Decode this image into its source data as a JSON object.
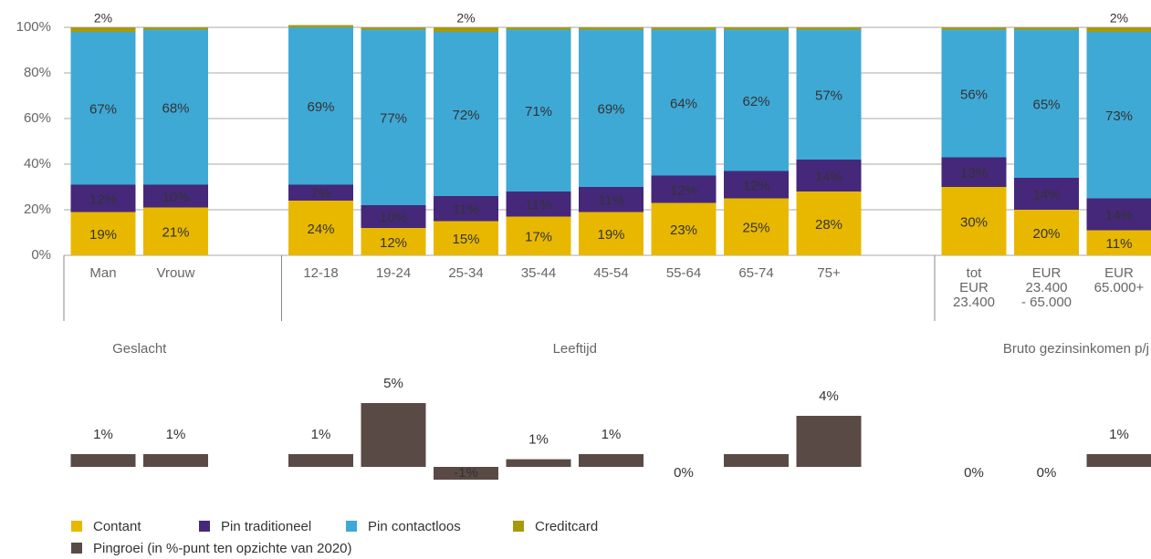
{
  "chart_data": [
    {
      "type": "stacked_bar",
      "categories": [
        "Man",
        "Vrouw",
        null,
        "12-18",
        "19-24",
        "25-34",
        "35-44",
        "45-54",
        "55-64",
        "65-74",
        "75+",
        null,
        "tot\nEUR\n23.400",
        "EUR\n23.400\n- 65.000",
        "EUR\n65.000+"
      ],
      "groups": [
        "Geslacht",
        "Leeftijd",
        "Bruto gezinsinkomen p/j"
      ],
      "series": [
        {
          "name": "Contant",
          "color": "#e8b800",
          "values": [
            19,
            21,
            null,
            24,
            12,
            15,
            17,
            19,
            23,
            25,
            28,
            null,
            30,
            20,
            11
          ],
          "value_labels": [
            "19%",
            "21%",
            null,
            "24%",
            "12%",
            "15%",
            "17%",
            "19%",
            "23%",
            "25%",
            "28%",
            null,
            "30%",
            "20%",
            "11%"
          ]
        },
        {
          "name": "Pin traditioneel",
          "color": "#45287a",
          "values": [
            12,
            10,
            null,
            7,
            10,
            11,
            11,
            11,
            12,
            12,
            14,
            null,
            13,
            14,
            14
          ],
          "value_labels": [
            "12%",
            "10%",
            null,
            "7%",
            "10%",
            "11%",
            "11%",
            "11%",
            "12%",
            "12%",
            "14%",
            null,
            "13%",
            "14%",
            "14%"
          ]
        },
        {
          "name": "Pin contactloos",
          "color": "#3fa9d6",
          "values": [
            67,
            68,
            null,
            69,
            77,
            72,
            71,
            69,
            64,
            62,
            57,
            null,
            56,
            65,
            73
          ],
          "value_labels": [
            "67%",
            "68%",
            null,
            "69%",
            "77%",
            "72%",
            "71%",
            "69%",
            "64%",
            "62%",
            "57%",
            null,
            "56%",
            "65%",
            "73%"
          ]
        },
        {
          "name": "Creditcard",
          "color": "#a89a0a",
          "values": [
            2,
            1,
            null,
            1,
            1,
            2,
            1,
            1,
            1,
            1,
            1,
            null,
            1,
            1,
            2
          ],
          "value_labels": [
            "2%",
            null,
            null,
            null,
            null,
            "2%",
            null,
            null,
            null,
            null,
            null,
            null,
            null,
            null,
            "2%"
          ]
        }
      ],
      "ylim": [
        0,
        100
      ],
      "yticks": [
        {
          "value": 0,
          "label": "0%"
        },
        {
          "value": 20,
          "label": "20%"
        },
        {
          "value": 40,
          "label": "40%"
        },
        {
          "value": 60,
          "label": "60%"
        },
        {
          "value": 80,
          "label": "80%"
        },
        {
          "value": 100,
          "label": "100%"
        }
      ],
      "grid": true
    },
    {
      "type": "bar",
      "series": [
        {
          "name": "Pingroei (in %-punt ten opzichte van 2020)",
          "color": "#5a4a45",
          "values": [
            1,
            1,
            null,
            1,
            5,
            -1,
            0.6,
            1,
            0,
            1,
            4,
            null,
            0,
            0,
            1
          ],
          "value_labels": [
            "1%",
            "1%",
            null,
            "1%",
            "5%",
            "-1%",
            "1%",
            "1%",
            "0%",
            null,
            "4%",
            null,
            "0%",
            "0%",
            "1%"
          ]
        }
      ]
    }
  ]
}
